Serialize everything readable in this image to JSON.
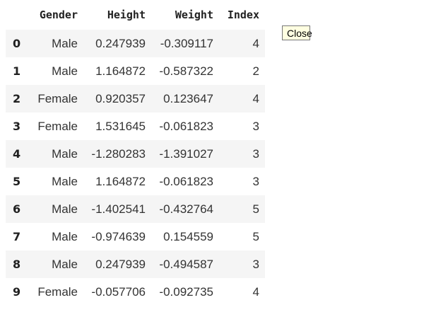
{
  "table": {
    "columns": [
      "",
      "Gender",
      "Height",
      "Weight",
      "Index"
    ],
    "rows": [
      {
        "index": "0",
        "gender": "Male",
        "height": "0.247939",
        "weight": "-0.309117",
        "idx": "4"
      },
      {
        "index": "1",
        "gender": "Male",
        "height": "1.164872",
        "weight": "-0.587322",
        "idx": "2"
      },
      {
        "index": "2",
        "gender": "Female",
        "height": "0.920357",
        "weight": "0.123647",
        "idx": "4"
      },
      {
        "index": "3",
        "gender": "Female",
        "height": "1.531645",
        "weight": "-0.061823",
        "idx": "3"
      },
      {
        "index": "4",
        "gender": "Male",
        "height": "-1.280283",
        "weight": "-1.391027",
        "idx": "3"
      },
      {
        "index": "5",
        "gender": "Male",
        "height": "1.164872",
        "weight": "-0.061823",
        "idx": "3"
      },
      {
        "index": "6",
        "gender": "Male",
        "height": "-1.402541",
        "weight": "-0.432764",
        "idx": "5"
      },
      {
        "index": "7",
        "gender": "Male",
        "height": "-0.974639",
        "weight": "0.154559",
        "idx": "5"
      },
      {
        "index": "8",
        "gender": "Male",
        "height": "0.247939",
        "weight": "-0.494587",
        "idx": "3"
      },
      {
        "index": "9",
        "gender": "Female",
        "height": "-0.057706",
        "weight": "-0.092735",
        "idx": "4"
      }
    ]
  },
  "tooltip": {
    "close_label": "Close"
  },
  "colors": {
    "stripe": "#f5f5f5",
    "tooltip_bg": "#ffffe1"
  }
}
